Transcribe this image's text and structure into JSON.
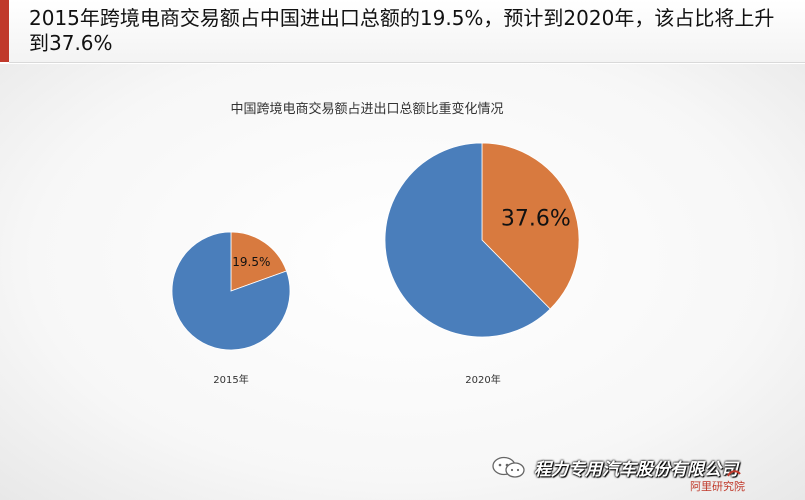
{
  "headline": "2015年跨境电商交易额占中国进出口总额的19.5%，预计到2020年，该占比将上升到37.6%",
  "colors": {
    "accent": "#c0392b",
    "rest": "#4a7ebb",
    "cross_border": "#d87a3f"
  },
  "chart_data": {
    "type": "pie",
    "title": "中国跨境电商交易额占进出口总额比重变化情况",
    "pies": [
      {
        "year_label": "2015年",
        "slices": [
          {
            "name": "",
            "value": 19.5,
            "label": "19.5%",
            "color": "#d87a3f"
          },
          {
            "name": "",
            "value": 80.5,
            "label": "",
            "color": "#4a7ebb"
          }
        ]
      },
      {
        "year_label": "2020年",
        "slices": [
          {
            "name": "",
            "value": 37.6,
            "label": "37.6%",
            "color": "#d87a3f"
          },
          {
            "name": "",
            "value": 62.4,
            "label": "",
            "color": "#4a7ebb"
          }
        ]
      }
    ]
  },
  "watermark": {
    "icon": "wechat-icon",
    "text": "程力专用汽车股份有限公司"
  },
  "logo": {
    "text": "阿里研究院"
  }
}
